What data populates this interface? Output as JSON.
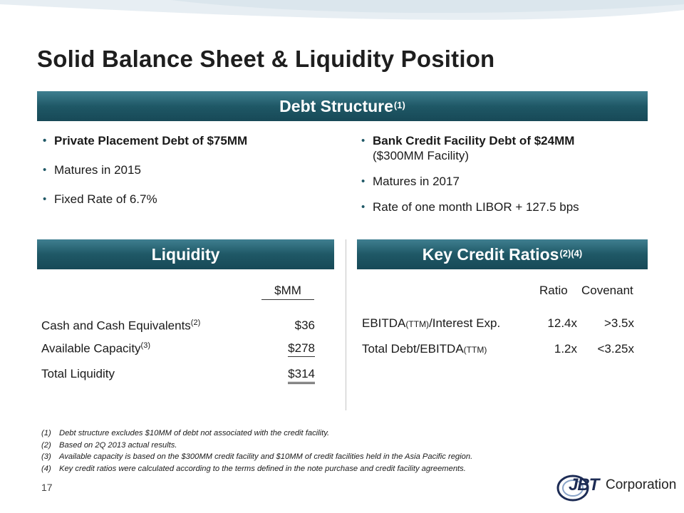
{
  "title": "Solid Balance Sheet & Liquidity Position",
  "debt_structure": {
    "heading": "Debt Structure",
    "heading_sup": "(1)",
    "left": [
      "Private Placement Debt of $75MM",
      "Matures in 2015",
      "Fixed Rate of 6.7%"
    ],
    "right": [
      "Bank Credit Facility Debt of $24MM",
      "($300MM Facility)",
      "Matures in 2017",
      "Rate of one month LIBOR + 127.5 bps"
    ]
  },
  "liquidity": {
    "heading": "Liquidity",
    "column_header": "$MM",
    "rows": [
      {
        "label": "Cash and Cash Equivalents",
        "sup": "(2)",
        "value": "$36"
      },
      {
        "label": "Available Capacity",
        "sup": "(3)",
        "value": "$278"
      },
      {
        "label": "Total Liquidity",
        "sup": "",
        "value": "$314"
      }
    ]
  },
  "key_credit_ratios": {
    "heading": "Key Credit Ratios",
    "heading_sup": "(2)(4)",
    "col_ratio": "Ratio",
    "col_covenant": "Covenant",
    "rows": [
      {
        "label_a": "EBITDA",
        "label_small": "(TTM)",
        "label_b": "/Interest Exp.",
        "ratio": "12.4x",
        "covenant": ">3.5x"
      },
      {
        "label_a": "Total Debt/EBITDA",
        "label_small": "(TTM)",
        "label_b": "",
        "ratio": "1.2x",
        "covenant": "<3.25x"
      }
    ]
  },
  "footnotes": [
    {
      "num": "(1)",
      "text": "Debt structure excludes $10MM of debt not associated with the credit facility."
    },
    {
      "num": "(2)",
      "text": "Based on 2Q 2013 actual results."
    },
    {
      "num": "(3)",
      "text": "Available capacity is based on the $300MM credit facility and $10MM of credit facilities held in the Asia Pacific region."
    },
    {
      "num": "(4)",
      "text": "Key credit ratios were calculated according to the terms defined in the note purchase and credit facility agreements."
    }
  ],
  "page_number": "17",
  "logo": {
    "mark": "JBT",
    "text": "Corporation"
  }
}
